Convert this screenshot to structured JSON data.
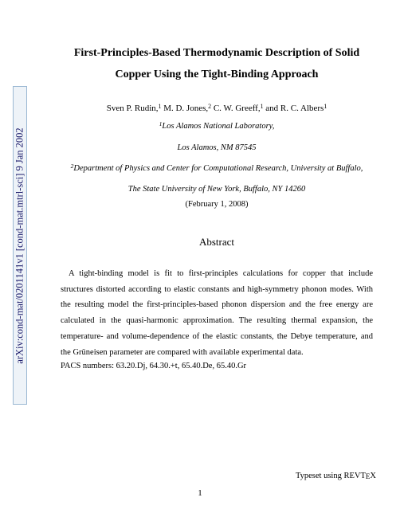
{
  "arxiv": {
    "id": "arXiv:cond-mat/0201141v1  [cond-mat.mtrl-sci]  9 Jan 2002",
    "border_color": "#9bb8d3",
    "bg_color": "#eef3f8",
    "text_color": "#1a1a6a"
  },
  "title_line1": "First-Principles-Based Thermodynamic Description of Solid",
  "title_line2": "Copper Using the Tight-Binding Approach",
  "authors_html": "Sven P. Rudin,<sup>1</sup> M. D. Jones,<sup>2</sup> C. W. Greeff,<sup>1</sup> and R. C. Albers<sup>1</sup>",
  "affil1_html": "<sup>1</sup>Los Alamos National Laboratory,",
  "affil1b": "Los Alamos, NM 87545",
  "affil2_html": "<sup>2</sup>Department of Physics and Center for Computational Research, University at Buffalo,",
  "affil2b": "The State University of New York, Buffalo, NY 14260",
  "date": "(February 1, 2008)",
  "abstract_heading": "Abstract",
  "abstract_body": "A tight-binding model is fit to first-principles calculations for copper that include structures distorted according to elastic constants and high-symmetry phonon modes. With the resulting model the first-principles-based phonon dispersion and the free energy are calculated in the quasi-harmonic approximation. The resulting thermal expansion, the temperature- and volume-dependence of the elastic constants, the Debye temperature, and the Grüneisen parameter are compared with available experimental data.",
  "pacs": "PACS numbers: 63.20.Dj, 64.30.+t, 65.40.De, 65.40.Gr",
  "typeset": "Typeset using REVT",
  "typeset_e": "E",
  "typeset_x": "X",
  "page_number": "1",
  "colors": {
    "background": "#ffffff",
    "text": "#000000"
  },
  "fonts": {
    "title_size_pt": 14,
    "body_size_pt": 10.5,
    "abstract_head_size_pt": 13,
    "author_size_pt": 11
  }
}
